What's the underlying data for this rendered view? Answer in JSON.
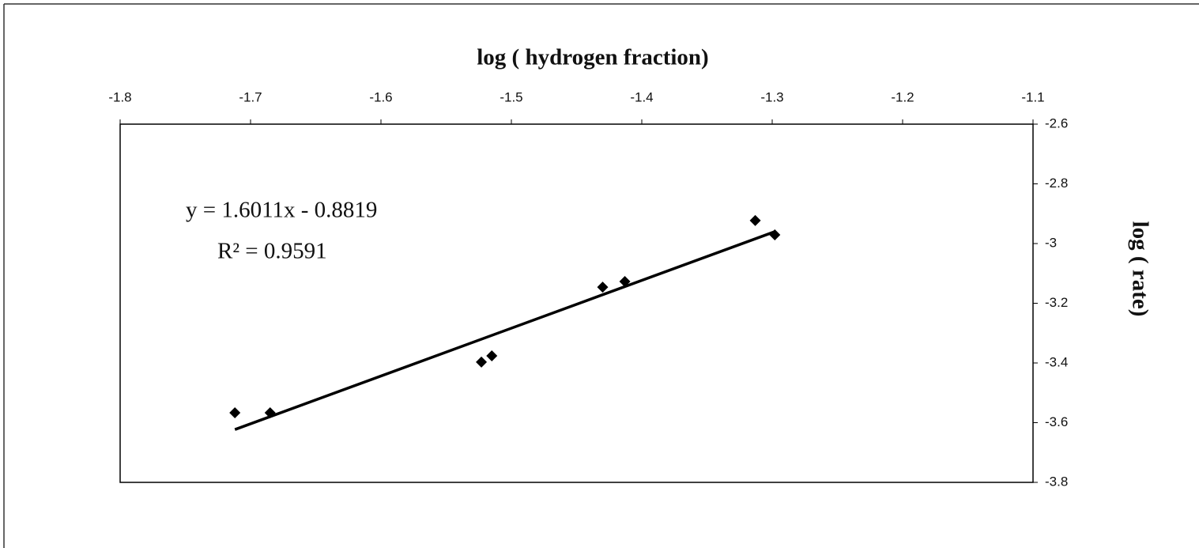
{
  "chart_data": {
    "type": "scatter",
    "x_label": "log ( hydrogen fraction)",
    "y_label": "log ( rate)",
    "annotations": [
      "y = 1.6011x - 0.8819",
      "R² = 0.9591"
    ],
    "x": [
      -1.712,
      -1.685,
      -1.523,
      -1.515,
      -1.43,
      -1.413,
      -1.313,
      -1.298
    ],
    "values": [
      -3.567,
      -3.567,
      -3.397,
      -3.376,
      -3.146,
      -3.127,
      -2.923,
      -2.971
    ],
    "color": "#000000",
    "trendline": {
      "slope": 1.6011,
      "intercept": -0.8819
    },
    "xlim": [
      -1.8,
      -1.1
    ],
    "xticks": [
      -1.8,
      -1.7,
      -1.6,
      -1.5,
      -1.4,
      -1.3,
      -1.2,
      -1.1
    ],
    "ylim": [
      -3.8,
      -2.6
    ],
    "yticks": [
      -2.6,
      -2.8,
      -3,
      -3.2,
      -3.4,
      -3.6,
      -3.8
    ],
    "grid": false
  }
}
